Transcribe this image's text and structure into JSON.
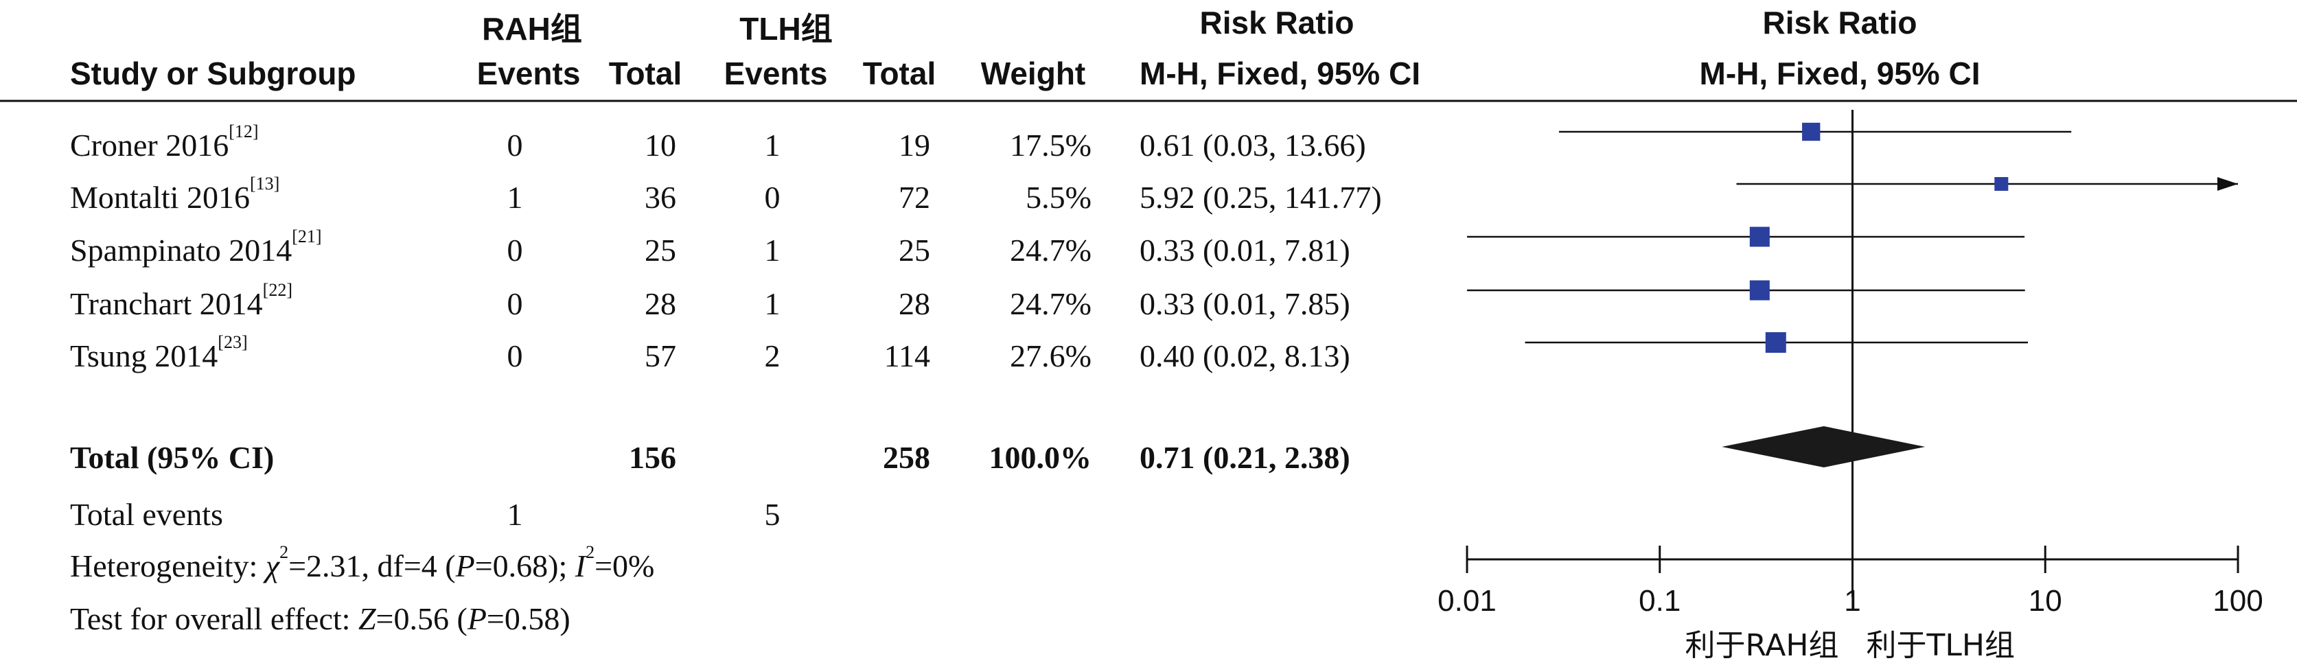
{
  "headers": {
    "group1": "RAH组",
    "group2": "TLH组",
    "study": "Study or Subgroup",
    "events": "Events",
    "total": "Total",
    "weight": "Weight",
    "rr_title": "Risk Ratio",
    "rr_method": "M-H, Fixed, 95% CI"
  },
  "rows": [
    {
      "study": "Croner 2016",
      "ref": "[12]",
      "e1": "0",
      "t1": "10",
      "e2": "1",
      "t2": "19",
      "weight": "17.5%",
      "ci_text": "0.61 (0.03, 13.66)"
    },
    {
      "study": "Montalti 2016",
      "ref": "[13]",
      "e1": "1",
      "t1": "36",
      "e2": "0",
      "t2": "72",
      "weight": "5.5%",
      "ci_text": "5.92 (0.25, 141.77)"
    },
    {
      "study": "Spampinato 2014",
      "ref": "[21]",
      "e1": "0",
      "t1": "25",
      "e2": "1",
      "t2": "25",
      "weight": "24.7%",
      "ci_text": "0.33 (0.01, 7.81)"
    },
    {
      "study": "Tranchart 2014",
      "ref": "[22]",
      "e1": "0",
      "t1": "28",
      "e2": "1",
      "t2": "28",
      "weight": "24.7%",
      "ci_text": "0.33 (0.01, 7.85)"
    },
    {
      "study": "Tsung 2014",
      "ref": "[23]",
      "e1": "0",
      "t1": "57",
      "e2": "2",
      "t2": "114",
      "weight": "27.6%",
      "ci_text": "0.40 (0.02, 8.13)"
    }
  ],
  "total": {
    "label": "Total (95% CI)",
    "t1": "156",
    "t2": "258",
    "weight": "100.0%",
    "ci_text": "0.71 (0.21, 2.38)"
  },
  "events_row": {
    "label": "Total events",
    "e1": "1",
    "e2": "5"
  },
  "heterogeneity": {
    "prefix": "Heterogeneity: ",
    "chi_sym": "χ",
    "chi_val": "=2.31, df=4 (",
    "p_sym": "P",
    "p_val": "=0.68); ",
    "i_sym": "I",
    "i_val": "=0%"
  },
  "overall": {
    "prefix": "Test for overall effect: ",
    "z_sym": "Z",
    "z_val": "=0.56 (",
    "p_sym": "P",
    "p_val": "=0.58)"
  },
  "chart_data": {
    "type": "forest",
    "title": "Risk Ratio",
    "subtitle": "M-H, Fixed, 95% CI",
    "scale": "log",
    "xlim": [
      0.01,
      100
    ],
    "ticks": [
      "0.01",
      "0.1",
      "1",
      "10",
      "100"
    ],
    "tick_values": [
      0.01,
      0.1,
      1,
      10,
      100
    ],
    "favours_left": "利于RAH组",
    "favours_right": "利于TLH组",
    "marker_color": "#2B3F9E",
    "diamond_color": "#1a1a1a",
    "studies": [
      {
        "name": "Croner 2016",
        "rr": 0.61,
        "lower": 0.03,
        "upper": 13.66,
        "weight": 17.5
      },
      {
        "name": "Montalti 2016",
        "rr": 5.92,
        "lower": 0.25,
        "upper": 141.77,
        "weight": 5.5
      },
      {
        "name": "Spampinato 2014",
        "rr": 0.33,
        "lower": 0.01,
        "upper": 7.81,
        "weight": 24.7
      },
      {
        "name": "Tranchart 2014",
        "rr": 0.33,
        "lower": 0.01,
        "upper": 7.85,
        "weight": 24.7
      },
      {
        "name": "Tsung 2014",
        "rr": 0.4,
        "lower": 0.02,
        "upper": 8.13,
        "weight": 27.6
      }
    ],
    "pooled": {
      "rr": 0.71,
      "lower": 0.21,
      "upper": 2.38
    }
  }
}
